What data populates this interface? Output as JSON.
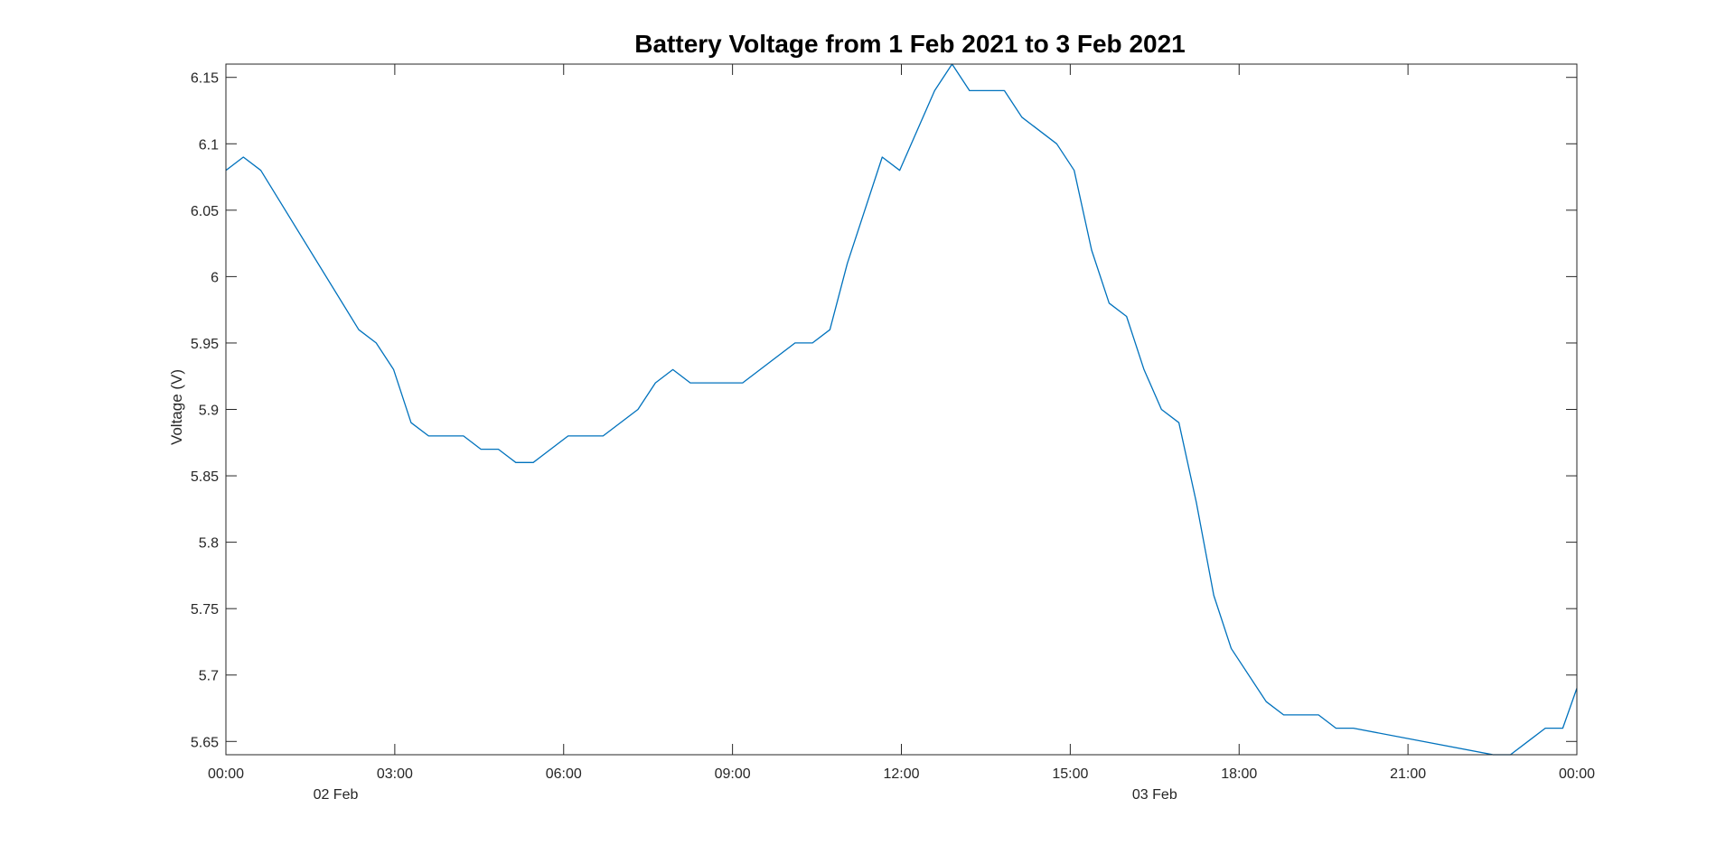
{
  "chart_data": {
    "type": "line",
    "title": "Battery Voltage from  1 Feb 2021 to 3 Feb 2021",
    "xlabel": "",
    "ylabel": "Voltage (V)",
    "ylim": [
      5.64,
      6.16
    ],
    "grid": true,
    "minor_grid": true,
    "line_color": "#0072BD",
    "x_unit": "hours",
    "xlim": [
      0,
      24
    ],
    "x_ticks": [
      {
        "x": 0,
        "label": "00:00"
      },
      {
        "x": 3,
        "label": "03:00"
      },
      {
        "x": 6,
        "label": "06:00"
      },
      {
        "x": 9,
        "label": "09:00"
      },
      {
        "x": 12,
        "label": "12:00"
      },
      {
        "x": 15,
        "label": "15:00"
      },
      {
        "x": 18,
        "label": "18:00"
      },
      {
        "x": 21,
        "label": "21:00"
      },
      {
        "x": 24,
        "label": "00:00"
      }
    ],
    "date_labels": [
      {
        "x": 1.95,
        "label": "02 Feb"
      },
      {
        "x": 16.5,
        "label": "03 Feb"
      }
    ],
    "y_ticks": [
      5.65,
      5.7,
      5.75,
      5.8,
      5.85,
      5.9,
      5.95,
      6,
      6.05,
      6.1,
      6.15
    ],
    "y_tick_labels": [
      "5.65",
      "5.7",
      "5.75",
      "5.8",
      "5.85",
      "5.9",
      "5.95",
      "6",
      "6.05",
      "6.1",
      "6.15"
    ],
    "series": [
      {
        "x": [
          0,
          0.31,
          0.62,
          2.36,
          2.67,
          2.98,
          3.29,
          3.6,
          3.91,
          4.22,
          4.53,
          4.84,
          5.15,
          5.46,
          6.08,
          6.7,
          7.32,
          7.63,
          7.94,
          8.25,
          9.18,
          10.11,
          10.42,
          10.73,
          11.04,
          11.66,
          11.97,
          12.59,
          12.9,
          13.21,
          13.52,
          13.83,
          14.14,
          14.76,
          15.07,
          15.38,
          15.69,
          16.0,
          16.31,
          16.62,
          16.93,
          17.24,
          17.55,
          17.86,
          18.48,
          18.79,
          19.1,
          19.41,
          19.72,
          20.03,
          22.51,
          22.82,
          23.13,
          23.44,
          23.75,
          24.0
        ],
        "y": [
          6.08,
          6.09,
          6.08,
          5.96,
          5.95,
          5.93,
          5.89,
          5.88,
          5.88,
          5.88,
          5.87,
          5.87,
          5.86,
          5.86,
          5.88,
          5.88,
          5.9,
          5.92,
          5.93,
          5.92,
          5.92,
          5.95,
          5.95,
          5.96,
          6.01,
          6.09,
          6.08,
          6.14,
          6.16,
          6.14,
          6.14,
          6.14,
          6.12,
          6.1,
          6.08,
          6.02,
          5.98,
          5.97,
          5.93,
          5.9,
          5.89,
          5.83,
          5.76,
          5.72,
          5.68,
          5.67,
          5.67,
          5.67,
          5.66,
          5.66,
          5.64,
          5.64,
          5.65,
          5.66,
          5.66,
          5.69
        ]
      }
    ]
  }
}
